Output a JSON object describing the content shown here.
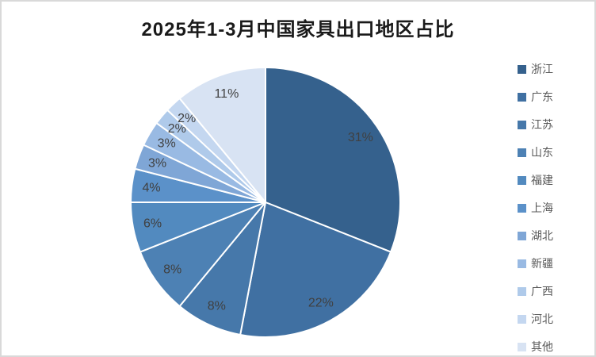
{
  "window": {
    "background": "#FFFFFF",
    "border_color": "#D9D9D9"
  },
  "chart_data": {
    "type": "pie",
    "title": "2025年1-3月中国家具出口地区占比",
    "categories": [
      "浙江",
      "广东",
      "江苏",
      "山东",
      "福建",
      "上海",
      "湖北",
      "新疆",
      "广西",
      "河北",
      "其他"
    ],
    "values": [
      31,
      22,
      8,
      8,
      6,
      4,
      3,
      3,
      2,
      2,
      11
    ],
    "slice_labels": [
      "31%",
      "22%",
      "8%",
      "8%",
      "6%",
      "4%",
      "3%",
      "3%",
      "2%",
      "2%",
      "11%"
    ],
    "colors": [
      "#35618D",
      "#4070A2",
      "#4678AA",
      "#4D81B4",
      "#528ABF",
      "#5B91C9",
      "#7FA6D6",
      "#99BAE3",
      "#AFCAEA",
      "#C4D7F0",
      "#D8E3F3"
    ],
    "start_angle_deg": 0,
    "direction": "clockwise",
    "legend_position": "right",
    "grid": false,
    "title_color": "#1A1A1A",
    "label_color": "#404040",
    "legend_text_color": "#595959",
    "slice_border_color": "#FFFFFF"
  }
}
